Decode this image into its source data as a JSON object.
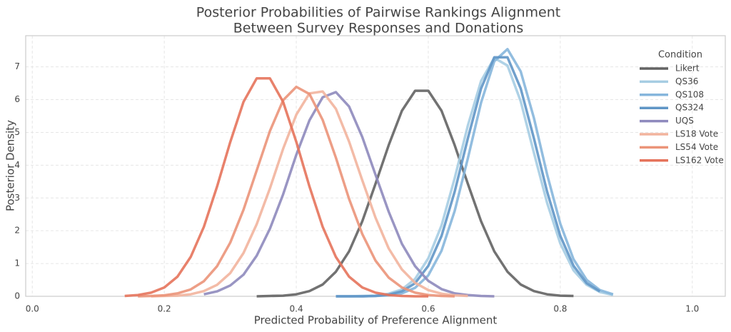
{
  "chart_data": {
    "type": "line",
    "title": "Posterior Probabilities of Pairwise Rankings Alignment",
    "subtitle": "Between Survey Responses and Donations",
    "x_label": "Predicted Probability of Preference Alignment",
    "y_label": "Posterior Density",
    "legend_title": "Condition",
    "legend": "upper right",
    "grid": true,
    "xlim": [
      -0.01,
      1.05
    ],
    "ylim": [
      0,
      7.95
    ],
    "xticks": [
      {
        "value": 0,
        "label": "0.0"
      },
      0.2,
      0.4,
      0.6,
      0.8,
      {
        "value": 1,
        "label": "1.0"
      }
    ],
    "yticks": [
      0,
      1,
      2,
      3,
      4,
      5,
      6,
      7
    ],
    "x": [
      0.14,
      0.16,
      0.18,
      0.2,
      0.22,
      0.24,
      0.26,
      0.28,
      0.3,
      0.32,
      0.34,
      0.36,
      0.38,
      0.4,
      0.42,
      0.44,
      0.46,
      0.48,
      0.5,
      0.52,
      0.54,
      0.56,
      0.58,
      0.6,
      0.62,
      0.64,
      0.66,
      0.68,
      0.7,
      0.72,
      0.74,
      0.76,
      0.78,
      0.8,
      0.82,
      0.84,
      0.86,
      0.88,
      0.9
    ],
    "series": [
      {
        "name": "Likert",
        "color": "#636363",
        "values": [
          null,
          null,
          null,
          null,
          null,
          null,
          null,
          null,
          null,
          null,
          0,
          0.01,
          0.02,
          0.06,
          0.16,
          0.36,
          0.75,
          1.37,
          2.29,
          3.43,
          4.61,
          5.66,
          6.27,
          6.27,
          5.66,
          4.61,
          3.43,
          2.29,
          1.37,
          0.75,
          0.36,
          0.16,
          0.06,
          0.02,
          0.01,
          null,
          null,
          null,
          null
        ]
      },
      {
        "name": "QS36",
        "color": "#a6cde3",
        "values": [
          null,
          null,
          null,
          null,
          null,
          null,
          null,
          null,
          null,
          null,
          null,
          null,
          null,
          null,
          null,
          null,
          0,
          0,
          0.01,
          0.02,
          0.08,
          0.21,
          0.53,
          1.16,
          2.16,
          3.6,
          5.21,
          6.57,
          7.27,
          7.04,
          5.95,
          4.38,
          2.85,
          1.61,
          0.79,
          0.35,
          0.13,
          0.04,
          null
        ]
      },
      {
        "name": "QS108",
        "color": "#86b6dc",
        "values": [
          null,
          null,
          null,
          null,
          null,
          null,
          null,
          null,
          null,
          null,
          null,
          null,
          null,
          null,
          null,
          null,
          0,
          0,
          0,
          0.01,
          0.03,
          0.09,
          0.26,
          0.64,
          1.39,
          2.6,
          4.21,
          5.91,
          7.17,
          7.54,
          6.86,
          5.44,
          3.72,
          2.21,
          1.13,
          0.5,
          0.19,
          0.06,
          null
        ]
      },
      {
        "name": "QS324",
        "color": "#6096c6",
        "values": [
          null,
          null,
          null,
          null,
          null,
          null,
          null,
          null,
          null,
          null,
          null,
          null,
          null,
          null,
          null,
          null,
          0,
          0,
          0,
          0.01,
          0.05,
          0.15,
          0.4,
          0.93,
          1.84,
          3.19,
          4.82,
          6.34,
          7.29,
          7.29,
          6.34,
          4.82,
          3.19,
          1.84,
          0.93,
          0.4,
          0.15,
          null,
          null
        ]
      },
      {
        "name": "UQS",
        "color": "#8e89bd",
        "values": [
          null,
          null,
          null,
          null,
          null,
          null,
          0.06,
          0.15,
          0.33,
          0.66,
          1.24,
          2.06,
          3.11,
          4.32,
          5.37,
          6.07,
          6.23,
          5.79,
          4.86,
          3.71,
          2.58,
          1.6,
          0.92,
          0.47,
          0.22,
          0.09,
          0.04,
          0.01,
          0,
          null,
          null,
          null,
          null,
          null,
          null,
          null,
          null,
          null,
          null
        ]
      },
      {
        "name": "LS18 Vote",
        "color": "#f2b49d",
        "values": [
          null,
          null,
          0,
          0.01,
          0.02,
          0.06,
          0.16,
          0.35,
          0.71,
          1.32,
          2.2,
          3.29,
          4.5,
          5.54,
          6.19,
          6.25,
          5.72,
          4.72,
          3.54,
          2.4,
          1.46,
          0.82,
          0.41,
          0.19,
          0.08,
          0.03,
          0.01,
          null,
          null,
          null,
          null,
          null,
          null,
          null,
          null,
          null,
          null,
          null,
          null
        ]
      },
      {
        "name": "LS54 Vote",
        "color": "#eb9479",
        "values": [
          null,
          0,
          0.01,
          0.03,
          0.09,
          0.21,
          0.46,
          0.92,
          1.64,
          2.64,
          3.84,
          5.04,
          5.98,
          6.39,
          6.17,
          5.38,
          4.23,
          2.97,
          1.9,
          1.09,
          0.57,
          0.27,
          0.11,
          0.04,
          0.01,
          0,
          null,
          null,
          null,
          null,
          null,
          null,
          null,
          null,
          null,
          null,
          null,
          null,
          null
        ]
      },
      {
        "name": "LS162 Vote",
        "color": "#e5735b",
        "values": [
          0.01,
          0.04,
          0.11,
          0.27,
          0.6,
          1.2,
          2.12,
          3.35,
          4.71,
          5.93,
          6.65,
          6.65,
          5.93,
          4.71,
          3.35,
          2.12,
          1.2,
          0.6,
          0.27,
          0.11,
          0.04,
          0.01,
          0,
          0,
          null,
          null,
          null,
          null,
          null,
          null,
          null,
          null,
          null,
          null,
          null,
          null,
          null,
          null,
          null
        ]
      }
    ]
  }
}
